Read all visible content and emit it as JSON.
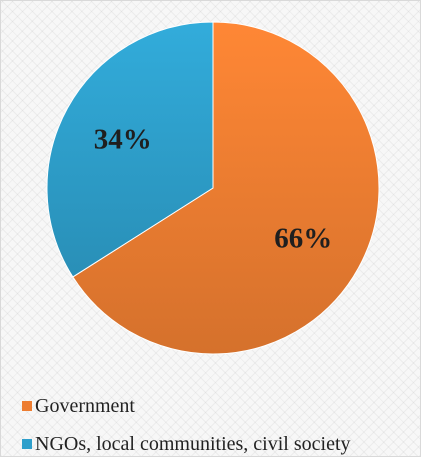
{
  "chart_data": {
    "type": "pie",
    "title": "",
    "slices": [
      {
        "label": "Government",
        "value": 66,
        "display": "66%",
        "color": "#ED7D31"
      },
      {
        "label": "NGOs, local communities, civil society",
        "value": 34,
        "display": "34%",
        "color": "#2E9FCB"
      }
    ],
    "legend_position": "bottom-left",
    "start": "top",
    "direction": "clockwise"
  }
}
